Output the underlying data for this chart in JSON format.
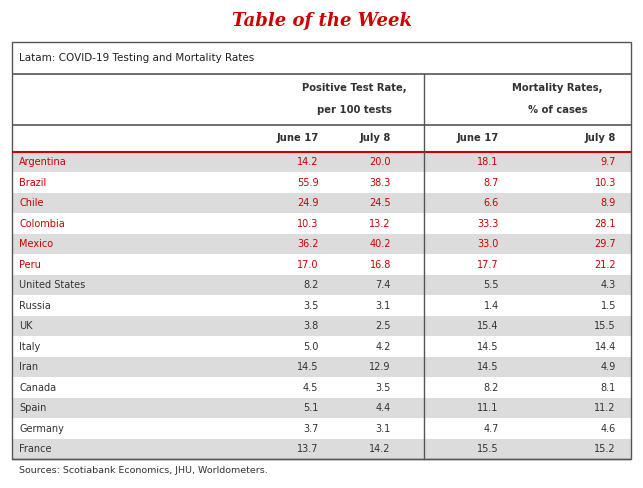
{
  "title": "Table of the Week",
  "subtitle": "Latam: COVID-19 Testing and Mortality Rates",
  "col_subheaders": [
    "June 17",
    "July 8",
    "June 17",
    "July 8"
  ],
  "countries": [
    "Argentina",
    "Brazil",
    "Chile",
    "Colombia",
    "Mexico",
    "Peru",
    "United States",
    "Russia",
    "UK",
    "Italy",
    "Iran",
    "Canada",
    "Spain",
    "Germany",
    "France"
  ],
  "is_latam": [
    true,
    true,
    true,
    true,
    true,
    true,
    false,
    false,
    false,
    false,
    false,
    false,
    false,
    false,
    false
  ],
  "data": [
    [
      "14.2",
      "20.0",
      "18.1",
      "9.7"
    ],
    [
      "55.9",
      "38.3",
      "8.7",
      "10.3"
    ],
    [
      "24.9",
      "24.5",
      "6.6",
      "8.9"
    ],
    [
      "10.3",
      "13.2",
      "33.3",
      "28.1"
    ],
    [
      "36.2",
      "40.2",
      "33.0",
      "29.7"
    ],
    [
      "17.0",
      "16.8",
      "17.7",
      "21.2"
    ],
    [
      "8.2",
      "7.4",
      "5.5",
      "4.3"
    ],
    [
      "3.5",
      "3.1",
      "1.4",
      "1.5"
    ],
    [
      "3.8",
      "2.5",
      "15.4",
      "15.5"
    ],
    [
      "5.0",
      "4.2",
      "14.5",
      "14.4"
    ],
    [
      "14.5",
      "12.9",
      "14.5",
      "4.9"
    ],
    [
      "4.5",
      "3.5",
      "8.2",
      "8.1"
    ],
    [
      "5.1",
      "4.4",
      "11.1",
      "11.2"
    ],
    [
      "3.7",
      "3.1",
      "4.7",
      "4.6"
    ],
    [
      "13.7",
      "14.2",
      "15.5",
      "15.2"
    ]
  ],
  "footer": "Sources: Scotiabank Economics, JHU, Worldometers.",
  "title_color": "#cc0000",
  "latam_color": "#cc0000",
  "normal_color": "#333333",
  "bg_color": "#ffffff",
  "stripe_color": "#dcdcdc",
  "title_bg_color": "#000000",
  "border_color": "#555555",
  "red_line_color": "#cc0000",
  "header_text_color": "#333333"
}
